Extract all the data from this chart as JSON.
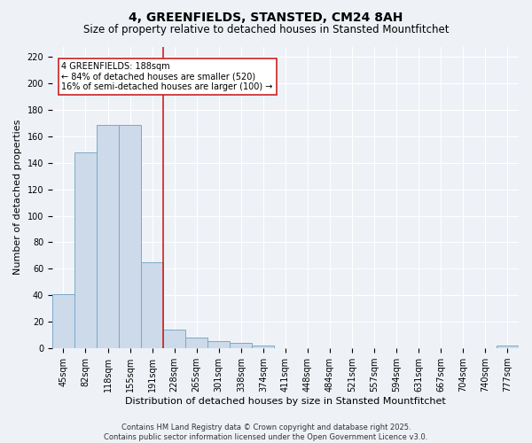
{
  "title": "4, GREENFIELDS, STANSTED, CM24 8AH",
  "subtitle": "Size of property relative to detached houses in Stansted Mountfitchet",
  "xlabel": "Distribution of detached houses by size in Stansted Mountfitchet",
  "ylabel": "Number of detached properties",
  "categories": [
    "45sqm",
    "82sqm",
    "118sqm",
    "155sqm",
    "191sqm",
    "228sqm",
    "265sqm",
    "301sqm",
    "338sqm",
    "374sqm",
    "411sqm",
    "448sqm",
    "484sqm",
    "521sqm",
    "557sqm",
    "594sqm",
    "631sqm",
    "667sqm",
    "704sqm",
    "740sqm",
    "777sqm"
  ],
  "values": [
    41,
    148,
    169,
    169,
    65,
    14,
    8,
    5,
    4,
    2,
    0,
    0,
    0,
    0,
    0,
    0,
    0,
    0,
    0,
    0,
    2
  ],
  "bar_color": "#cddaea",
  "bar_edge_color": "#7aaac8",
  "vline_color": "#cc2222",
  "vline_index": 4,
  "annotation_text_line1": "4 GREENFIELDS: 188sqm",
  "annotation_text_line2": "← 84% of detached houses are smaller (520)",
  "annotation_text_line3": "16% of semi-detached houses are larger (100) →",
  "annotation_box_facecolor": "#ffffff",
  "annotation_box_edgecolor": "#cc2222",
  "ylim": [
    0,
    228
  ],
  "yticks": [
    0,
    20,
    40,
    60,
    80,
    100,
    120,
    140,
    160,
    180,
    200,
    220
  ],
  "bg_color": "#eef2f7",
  "grid_color": "#ffffff",
  "footer_line1": "Contains HM Land Registry data © Crown copyright and database right 2025.",
  "footer_line2": "Contains public sector information licensed under the Open Government Licence v3.0.",
  "title_fontsize": 10,
  "subtitle_fontsize": 8.5,
  "ylabel_fontsize": 8,
  "xlabel_fontsize": 8,
  "tick_fontsize": 7,
  "annotation_fontsize": 7,
  "footer_fontsize": 6
}
